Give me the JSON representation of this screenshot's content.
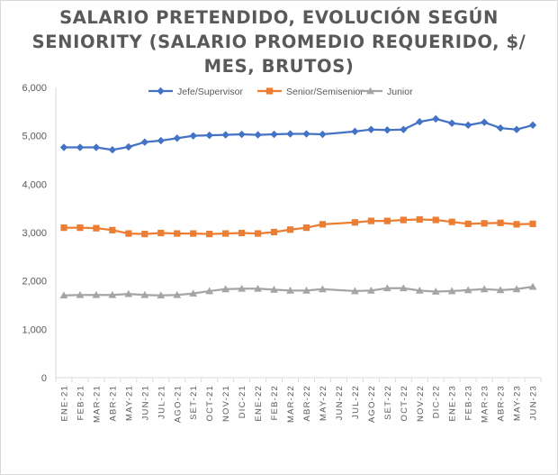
{
  "chart_data": {
    "type": "line",
    "title_lines": [
      "SALARIO PRETENDIDO, EVOLUCIÓN SEGÚN",
      "SENIORITY (SALARIO PROMEDIO REQUERIDO, $/",
      "MES, BRUTOS)"
    ],
    "categories": [
      "ENE-21",
      "FEB-21",
      "MAR-21",
      "ABR-21",
      "MAY-21",
      "JUN-21",
      "JUL-21",
      "AGO-21",
      "SET-21",
      "OCT-21",
      "NOV-21",
      "DIC-21",
      "ENE-22",
      "FEB-22",
      "MAR-22",
      "ABR-22",
      "MAY-22",
      "JUN-22",
      "JUL-22",
      "AGO-22",
      "SET-22",
      "OCT-22",
      "NOV-22",
      "DIC-22",
      "ENE-23",
      "FEB-23",
      "MAR-23",
      "ABR-23",
      "MAY-23",
      "JUN-23"
    ],
    "series": [
      {
        "name": "Jefe/Supervisor",
        "color": "#4472c4",
        "marker": "diamond",
        "values": [
          4760,
          4760,
          4760,
          4710,
          4770,
          4870,
          4900,
          4950,
          5000,
          5010,
          5020,
          5030,
          5020,
          5030,
          5040,
          5040,
          5030,
          null,
          5090,
          5130,
          5120,
          5130,
          5290,
          5350,
          5260,
          5220,
          5280,
          5160,
          5130,
          5220
        ]
      },
      {
        "name": "Senior/Semisenior",
        "color": "#ed7d31",
        "marker": "square",
        "values": [
          3100,
          3100,
          3090,
          3050,
          2980,
          2970,
          2990,
          2980,
          2980,
          2970,
          2980,
          2990,
          2980,
          3010,
          3060,
          3100,
          3170,
          null,
          3210,
          3240,
          3240,
          3260,
          3270,
          3260,
          3220,
          3180,
          3190,
          3200,
          3170,
          3180
        ]
      },
      {
        "name": "Junior",
        "color": "#a5a5a5",
        "marker": "triangle",
        "values": [
          1700,
          1710,
          1710,
          1710,
          1730,
          1710,
          1700,
          1710,
          1740,
          1790,
          1830,
          1840,
          1840,
          1820,
          1800,
          1800,
          1830,
          null,
          1790,
          1800,
          1850,
          1850,
          1800,
          1780,
          1790,
          1810,
          1830,
          1810,
          1830,
          1880
        ]
      }
    ],
    "ylim": [
      0,
      6000
    ],
    "yticks": [
      0,
      1000,
      2000,
      3000,
      4000,
      5000,
      6000
    ],
    "ytick_labels": [
      "0",
      "1,000",
      "2,000",
      "3,000",
      "4,000",
      "5,000",
      "6,000"
    ],
    "grid": false,
    "legend_position": "top"
  }
}
